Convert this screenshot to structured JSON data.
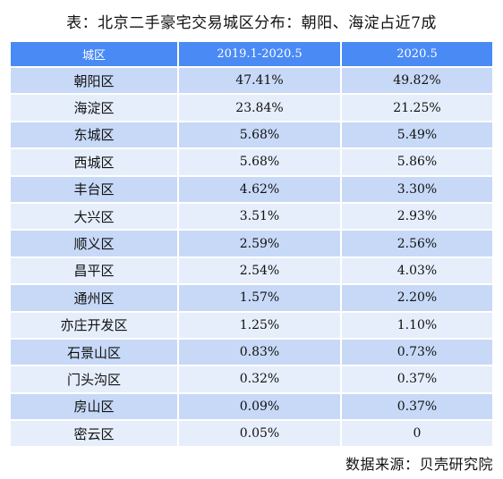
{
  "title": "表：北京二手豪宅交易城区分布：朝阳、海淀占近7成",
  "table": {
    "headers": [
      "城区",
      "2019.1-2020.5",
      "2020.5"
    ],
    "rows": [
      [
        "朝阳区",
        "47.41%",
        "49.82%"
      ],
      [
        "海淀区",
        "23.84%",
        "21.25%"
      ],
      [
        "东城区",
        "5.68%",
        "5.49%"
      ],
      [
        "西城区",
        "5.68%",
        "5.86%"
      ],
      [
        "丰台区",
        "4.62%",
        "3.30%"
      ],
      [
        "大兴区",
        "3.51%",
        "2.93%"
      ],
      [
        "顺义区",
        "2.59%",
        "2.56%"
      ],
      [
        "昌平区",
        "2.54%",
        "4.03%"
      ],
      [
        "通州区",
        "1.57%",
        "2.20%"
      ],
      [
        "亦庄开发区",
        "1.25%",
        "1.10%"
      ],
      [
        "石景山区",
        "0.83%",
        "0.73%"
      ],
      [
        "门头沟区",
        "0.32%",
        "0.37%"
      ],
      [
        "房山区",
        "0.09%",
        "0.37%"
      ],
      [
        "密云区",
        "0.05%",
        "0"
      ]
    ]
  },
  "source": "数据来源：贝壳研究院",
  "colors": {
    "header_bg": "#4a8af4",
    "row_dark": "#c7d9f7",
    "row_light": "#e6eefb"
  }
}
